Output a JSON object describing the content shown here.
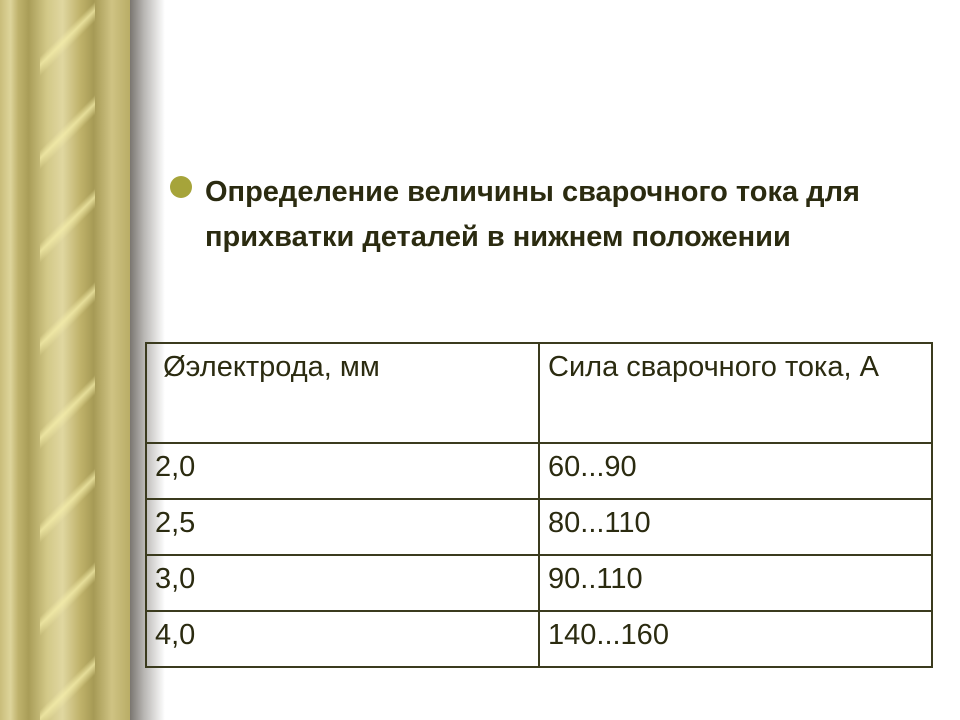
{
  "slide": {
    "heading": "Определение величины сварочного тока для прихватки деталей в нижнем положении",
    "bullet_color": "#a6a43a",
    "text_color": "#2b2b10"
  },
  "table": {
    "headers": [
      " Øэлектрода, мм",
      "Сила сварочного тока, А"
    ],
    "rows": [
      [
        "2,0",
        "60...90"
      ],
      [
        "2,5",
        "80...110"
      ],
      [
        "3,0",
        "90..110"
      ],
      [
        "4,0",
        "140...160"
      ]
    ]
  }
}
